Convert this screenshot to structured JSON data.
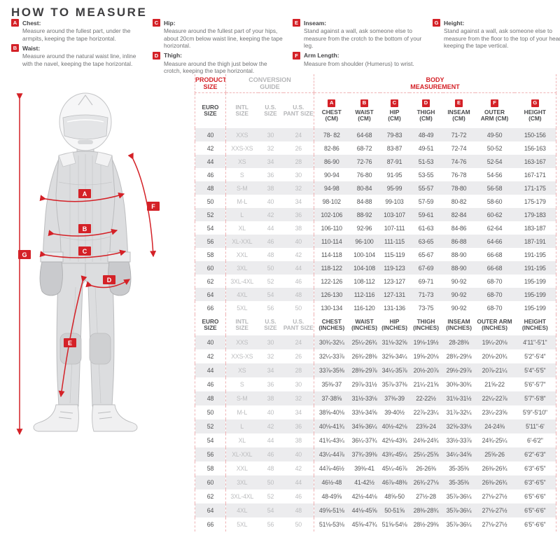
{
  "how_to_measure": {
    "title": "HOW TO MEASURE",
    "items": [
      {
        "letter": "A",
        "name": "Chest:",
        "text": "Measure around the fullest part, under the armpits, keeping the tape horizontal.",
        "col": 0
      },
      {
        "letter": "B",
        "name": "Waist:",
        "text": "Measure around the natural waist line, inline with the navel, keeping the tape horizontal.",
        "col": 0
      },
      {
        "letter": "C",
        "name": "Hip:",
        "text": "Measure around the fullest part of your hips, about 20cm below waist line, keeping the tape horizontal.",
        "col": 1
      },
      {
        "letter": "D",
        "name": "Thigh:",
        "text": "Measure around the thigh just below the crotch, keeping the tape horizontal.",
        "col": 1
      },
      {
        "letter": "E",
        "name": "Inseam:",
        "text": "Stand against a wall, ask someone else to measure from the crotch to the bottom of your leg.",
        "col": 2
      },
      {
        "letter": "F",
        "name": "Arm Length:",
        "text": "Measure from shoulder (Humerus) to wrist.",
        "col": 2
      },
      {
        "letter": "G",
        "name": "Height:",
        "text": "Stand against a wall, ask someone else to measure from the floor to the top of your head, keeping the tape vertical.",
        "col": 3
      }
    ]
  },
  "figure": {
    "labels": [
      "A",
      "B",
      "C",
      "D",
      "E",
      "F",
      "G"
    ]
  },
  "size_table": {
    "groups": [
      {
        "label": "PRODUCT\nSIZE",
        "span": 1,
        "cls": "g-red"
      },
      {
        "label": "CONVERSION\nGUIDE",
        "span": 3,
        "cls": "g-gray"
      },
      {
        "label": "BODY\nMEASUREMENT",
        "span": 7,
        "cls": "g-red"
      }
    ],
    "cm_header_letters": [
      "",
      "",
      "",
      "",
      "A",
      "B",
      "C",
      "D",
      "E",
      "F",
      "G"
    ],
    "cm_header": [
      "EURO\nSIZE",
      "INTL\nSIZE",
      "U.S.\nSIZE",
      "U.S.\nPANT SIZE",
      "CHEST\n(CM)",
      "WAIST\n(CM)",
      "HIP\n(CM)",
      "THIGH\n(CM)",
      "INSEAM\n(CM)",
      "OUTER\nARM (CM)",
      "HEIGHT\n(CM)"
    ],
    "in_header": [
      "EURO\nSIZE",
      "INTL\nSIZE",
      "U.S.\nSIZE",
      "U.S.\nPANT SIZE",
      "CHEST\n(INCHES)",
      "WAIST\n(INCHES)",
      "HIP\n(INCHES)",
      "THIGH\n(INCHES)",
      "INSEAM\n(INCHES)",
      "OUTER ARM\n(INCHES)",
      "HEIGHT\n(INCHES)"
    ],
    "cm_rows": [
      [
        "40",
        "XXS",
        "30",
        "24",
        "78- 82",
        "64-68",
        "79-83",
        "48-49",
        "71-72",
        "49-50",
        "150-156"
      ],
      [
        "42",
        "XXS-XS",
        "32",
        "26",
        "82-86",
        "68-72",
        "83-87",
        "49-51",
        "72-74",
        "50-52",
        "156-163"
      ],
      [
        "44",
        "XS",
        "34",
        "28",
        "86-90",
        "72-76",
        "87-91",
        "51-53",
        "74-76",
        "52-54",
        "163-167"
      ],
      [
        "46",
        "S",
        "36",
        "30",
        "90-94",
        "76-80",
        "91-95",
        "53-55",
        "76-78",
        "54-56",
        "167-171"
      ],
      [
        "48",
        "S-M",
        "38",
        "32",
        "94-98",
        "80-84",
        "95-99",
        "55-57",
        "78-80",
        "56-58",
        "171-175"
      ],
      [
        "50",
        "M-L",
        "40",
        "34",
        "98-102",
        "84-88",
        "99-103",
        "57-59",
        "80-82",
        "58-60",
        "175-179"
      ],
      [
        "52",
        "L",
        "42",
        "36",
        "102-106",
        "88-92",
        "103-107",
        "59-61",
        "82-84",
        "60-62",
        "179-183"
      ],
      [
        "54",
        "XL",
        "44",
        "38",
        "106-110",
        "92-96",
        "107-111",
        "61-63",
        "84-86",
        "62-64",
        "183-187"
      ],
      [
        "56",
        "XL-XXL",
        "46",
        "40",
        "110-114",
        "96-100",
        "111-115",
        "63-65",
        "86-88",
        "64-66",
        "187-191"
      ],
      [
        "58",
        "XXL",
        "48",
        "42",
        "114-118",
        "100-104",
        "115-119",
        "65-67",
        "88-90",
        "66-68",
        "191-195"
      ],
      [
        "60",
        "3XL",
        "50",
        "44",
        "118-122",
        "104-108",
        "119-123",
        "67-69",
        "88-90",
        "66-68",
        "191-195"
      ],
      [
        "62",
        "3XL-4XL",
        "52",
        "46",
        "122-126",
        "108-112",
        "123-127",
        "69-71",
        "90-92",
        "68-70",
        "195-199"
      ],
      [
        "64",
        "4XL",
        "54",
        "48",
        "126-130",
        "112-116",
        "127-131",
        "71-73",
        "90-92",
        "68-70",
        "195-199"
      ],
      [
        "66",
        "5XL",
        "56",
        "50",
        "130-134",
        "116-120",
        "131-136",
        "73-75",
        "90-92",
        "68-70",
        "195-199"
      ]
    ],
    "in_rows": [
      [
        "40",
        "XXS",
        "30",
        "24",
        "30¾-32¼",
        "25¼-26¾",
        "31⅛-32⅝",
        "19⅛-19½",
        "28-28⅜",
        "19¼-20⅛",
        "4'11\"-5'1\""
      ],
      [
        "42",
        "XXS-XS",
        "32",
        "26",
        "32¼-33⅞",
        "26¾-28⅜",
        "32⅝-34¼",
        "19⅝-20⅛",
        "28¾-29⅛",
        "20⅛-20¾",
        "5'2\"-5'4\""
      ],
      [
        "44",
        "XS",
        "34",
        "28",
        "33⅞-35⅜",
        "28⅜-29⅞",
        "34¼-35⅞",
        "20½-20⅞",
        "29½-29⅞",
        "20⅞-21¼",
        "5'4\"-5'5\""
      ],
      [
        "46",
        "S",
        "36",
        "30",
        "35⅜-37",
        "29⅞-31½",
        "35⅞-37⅜",
        "21¼-21⅝",
        "30⅜-30¾",
        "21⅝-22",
        "5'6\"-5'7\""
      ],
      [
        "48",
        "S-M",
        "38",
        "32",
        "37-38⅝",
        "31½-33⅛",
        "37⅜-39",
        "22-22½",
        "31⅛-31½",
        "22¼-22⅞",
        "5'7\"-5'8\""
      ],
      [
        "50",
        "M-L",
        "40",
        "34",
        "38⅝-40⅛",
        "33⅛-34⅝",
        "39-40½",
        "22⅞-23¼",
        "31⅞-32¼",
        "23¼-23⅝",
        "5'9\"-5'10\""
      ],
      [
        "52",
        "L",
        "42",
        "36",
        "40⅛-41¾",
        "34⅝-36¼",
        "40½-42⅛",
        "23⅝-24",
        "32⅝-33⅛",
        "24-24⅜",
        "5'11\"-6'"
      ],
      [
        "54",
        "XL",
        "44",
        "38",
        "41¾-43¼",
        "36¼-37¾",
        "42⅛-43¾",
        "24⅜-24¾",
        "33½-33⅞",
        "24¾-25¼",
        "6'-6'2\""
      ],
      [
        "56",
        "XL-XXL",
        "46",
        "40",
        "43¼-44⅞",
        "37¾-39⅜",
        "43¾-45¼",
        "25¼-25⅝",
        "34¼-34⅝",
        "25⅝-26",
        "6'2\"-6'3\""
      ],
      [
        "58",
        "XXL",
        "48",
        "42",
        "44⅞-46½",
        "39⅜-41",
        "45¼-46⅞",
        "26-26⅜",
        "35-35⅜",
        "26⅜-26¾",
        "6'3\"-6'5\""
      ],
      [
        "60",
        "3XL",
        "50",
        "44",
        "46½-48",
        "41-42½",
        "46⅞-48⅜",
        "26¾-27⅛",
        "35-35⅜",
        "26⅜-26¾",
        "6'3\"-6'5\""
      ],
      [
        "62",
        "3XL-4XL",
        "52",
        "46",
        "48-49⅝",
        "42½-44⅛",
        "48⅝-50",
        "27½-28",
        "35⅞-36¼",
        "27⅛-27½",
        "6'5\"-6'6\""
      ],
      [
        "64",
        "4XL",
        "54",
        "48",
        "49⅝-51⅛",
        "44⅛-45⅝",
        "50-51⅝",
        "28⅜-28¾",
        "35⅞-36¼",
        "27⅛-27½",
        "6'5\"-6'6\""
      ],
      [
        "66",
        "5XL",
        "56",
        "50",
        "51⅛-53⅛",
        "45⅝-47¾",
        "51⅝-54⅛",
        "28½-29⅜",
        "35⅞-36¼",
        "27⅛-27½",
        "6'5\"-6'6\""
      ]
    ]
  },
  "colors": {
    "accent_red": "#d42127",
    "row_shade": "#ececee",
    "muted_gray": "#b4b5b7",
    "text_dark": "#4a4b4d"
  }
}
